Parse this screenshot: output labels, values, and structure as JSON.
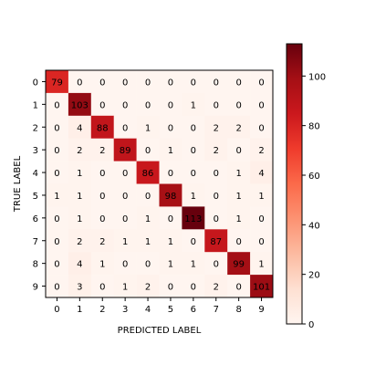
{
  "chart_data": {
    "type": "heatmap",
    "title": "",
    "xlabel": "PREDICTED LABEL",
    "ylabel": "TRUE LABEL",
    "x_categories": [
      "0",
      "1",
      "2",
      "3",
      "4",
      "5",
      "6",
      "7",
      "8",
      "9"
    ],
    "y_categories": [
      "0",
      "1",
      "2",
      "3",
      "4",
      "5",
      "6",
      "7",
      "8",
      "9"
    ],
    "values": [
      [
        79,
        0,
        0,
        0,
        0,
        0,
        0,
        0,
        0,
        0
      ],
      [
        0,
        103,
        0,
        0,
        0,
        0,
        1,
        0,
        0,
        0
      ],
      [
        0,
        4,
        88,
        0,
        1,
        0,
        0,
        2,
        2,
        0
      ],
      [
        0,
        2,
        2,
        89,
        0,
        1,
        0,
        2,
        0,
        2
      ],
      [
        0,
        1,
        0,
        0,
        86,
        0,
        0,
        0,
        1,
        4
      ],
      [
        1,
        1,
        0,
        0,
        0,
        98,
        1,
        0,
        1,
        1
      ],
      [
        0,
        1,
        0,
        0,
        1,
        0,
        113,
        0,
        1,
        0
      ],
      [
        0,
        2,
        2,
        1,
        1,
        1,
        0,
        87,
        0,
        0
      ],
      [
        0,
        4,
        1,
        0,
        0,
        1,
        1,
        0,
        99,
        1
      ],
      [
        0,
        3,
        0,
        1,
        2,
        0,
        0,
        2,
        0,
        101
      ]
    ],
    "colormap": "Reds",
    "colorbar": {
      "range": [
        0,
        113
      ],
      "ticks": [
        0,
        20,
        40,
        60,
        80,
        100
      ],
      "tick_labels": [
        "0",
        "20",
        "40",
        "60",
        "80",
        "100"
      ],
      "placement": "right"
    },
    "grid": false,
    "legend": "none"
  }
}
